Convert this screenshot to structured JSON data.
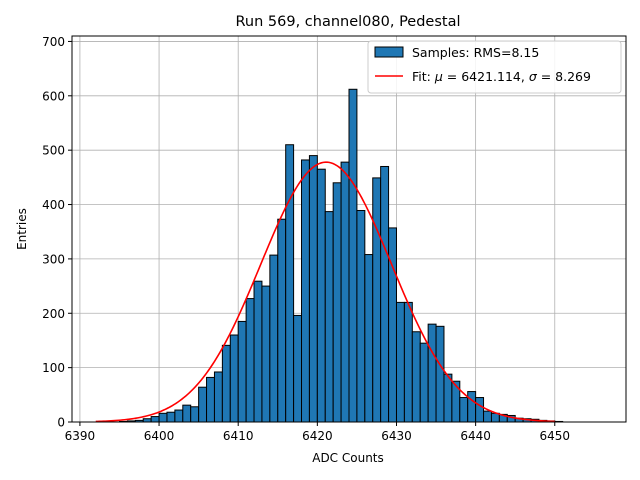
{
  "chart_data": {
    "type": "bar",
    "title": "Run 569, channel080, Pedestal",
    "xlabel": "ADC Counts",
    "ylabel": "Entries",
    "xlim": [
      6389,
      6459
    ],
    "ylim": [
      0,
      710
    ],
    "xticks": [
      6390,
      6400,
      6410,
      6420,
      6430,
      6440,
      6450
    ],
    "yticks": [
      0,
      100,
      200,
      300,
      400,
      500,
      600,
      700
    ],
    "grid": true,
    "legend_position": "top-right",
    "histogram": {
      "name": "Samples: RMS=8.15",
      "color": "#1f77b4",
      "bin_width": 1,
      "bin_edges_start": 6395,
      "values": [
        1,
        2,
        3,
        6,
        10,
        16,
        18,
        22,
        31,
        28,
        64,
        82,
        92,
        141,
        160,
        185,
        227,
        259,
        250,
        307,
        373,
        510,
        196,
        482,
        490,
        465,
        387,
        440,
        478,
        612,
        389,
        308,
        449,
        470,
        357,
        220,
        220,
        166,
        145,
        180,
        176,
        88,
        75,
        45,
        56,
        45,
        20,
        16,
        14,
        12,
        7,
        6,
        5,
        3,
        2,
        1
      ]
    },
    "fit": {
      "name": "Fit: μ = 6421.114, σ = 8.269",
      "color": "#ff0000",
      "mu": 6421.114,
      "sigma": 8.269,
      "amplitude": 478,
      "x_range": [
        6392,
        6450
      ]
    }
  },
  "legend": {
    "hist_prefix": "Samples: RMS=8.15",
    "fit_prefix": "Fit: ",
    "fit_mu_symbol": "μ",
    "fit_mu_value": " = 6421.114, ",
    "fit_sigma_symbol": "σ",
    "fit_sigma_value": " = 8.269"
  }
}
